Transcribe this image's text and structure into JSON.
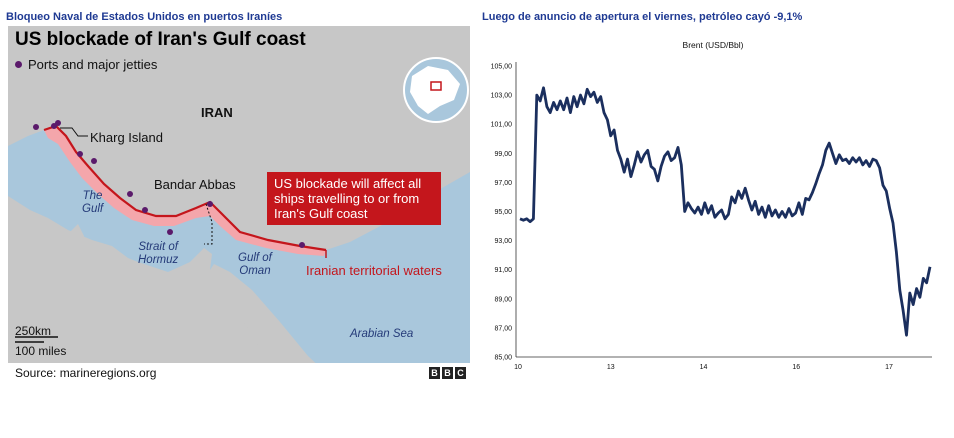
{
  "left_panel": {
    "title": "Bloqueo Naval de Estados Unidos en puertos Iraníes",
    "map": {
      "headline": "US blockade of Iran's Gulf coast",
      "legend": "Ports and major jetties",
      "labels": {
        "country": "IRAN",
        "kharg": "Kharg Island",
        "bandar": "Bandar Abbas",
        "gulf_line1": "The",
        "gulf_line2": "Gulf",
        "strait_line1": "Strait of",
        "strait_line2": "Hormuz",
        "oman_line1": "Gulf of",
        "oman_line2": "Oman",
        "arabian": "Arabian Sea"
      },
      "callout": "US blockade will affect all ships travelling to or from Iran's Gulf coast",
      "territorial": "Iranian territorial waters",
      "scale_km": "250km",
      "scale_miles": "100 miles",
      "source": "Source: marineregions.org",
      "logo": [
        "B",
        "B",
        "C"
      ],
      "colors": {
        "water": "#a9c7dc",
        "land": "#c7c7c7",
        "territorial": "#f4a6ab",
        "border": "#c4161c",
        "port": "#5b1a6b"
      }
    }
  },
  "right_panel": {
    "title": "Luego de anuncio de apertura el viernes, petróleo cayó -9,1%",
    "chart_data": {
      "type": "line",
      "title": "Brent (USD/Bbl)",
      "xlabel": "",
      "ylabel": "",
      "x_ticks": [
        "10",
        "13",
        "14",
        "16",
        "17"
      ],
      "y_ticks": [
        "85,00",
        "87,00",
        "89,00",
        "91,00",
        "93,00",
        "95,00",
        "97,00",
        "99,00",
        "101,00",
        "103,00",
        "105,00"
      ],
      "ylim": [
        85,
        105
      ],
      "grid": false,
      "line_color": "#1b2f5e",
      "series": [
        {
          "name": "",
          "values": [
            94.5,
            94.4,
            94.5,
            94.3,
            94.5,
            103.0,
            102.6,
            103.5,
            102.2,
            101.8,
            102.5,
            102.0,
            102.6,
            102.0,
            102.8,
            101.8,
            102.9,
            102.2,
            103.0,
            102.4,
            103.4,
            102.9,
            103.2,
            102.5,
            102.9,
            101.8,
            101.3,
            100.2,
            100.6,
            99.2,
            98.6,
            97.7,
            98.6,
            97.4,
            98.2,
            99.1,
            98.4,
            98.9,
            99.2,
            98.1,
            97.9,
            97.1,
            98.1,
            98.8,
            99.1,
            98.5,
            98.7,
            99.4,
            98.2,
            95.0,
            95.6,
            95.2,
            94.9,
            95.3,
            94.8,
            95.6,
            94.9,
            95.4,
            94.6,
            94.9,
            95.1,
            94.5,
            94.8,
            96.0,
            95.6,
            96.4,
            95.9,
            96.6,
            95.8,
            95.1,
            95.7,
            94.8,
            95.3,
            94.6,
            95.4,
            94.7,
            95.1,
            94.6,
            95.0,
            94.6,
            95.2,
            94.7,
            94.9,
            95.6,
            94.8,
            95.9,
            95.8,
            96.3,
            96.9,
            97.6,
            98.2,
            99.2,
            99.7,
            99.0,
            98.3,
            98.9,
            98.5,
            98.6,
            98.3,
            98.7,
            98.4,
            98.7,
            98.2,
            98.5,
            98.1,
            98.6,
            98.5,
            98.0,
            96.8,
            96.4,
            95.2,
            94.2,
            92.2,
            89.6,
            88.2,
            86.5,
            89.4,
            88.6,
            89.7,
            89.1,
            90.4,
            90.1,
            91.2
          ]
        }
      ]
    }
  }
}
